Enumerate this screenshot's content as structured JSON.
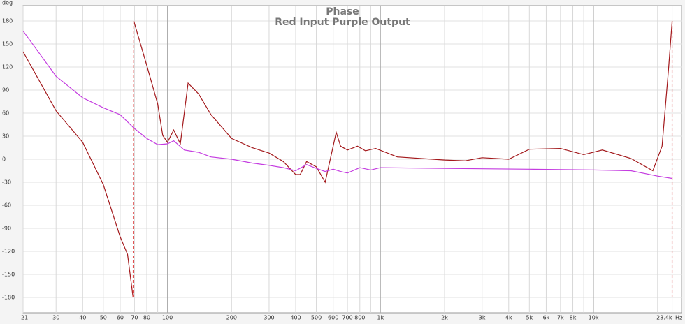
{
  "chart_data": {
    "type": "line",
    "title": "Phase",
    "subtitle": "Red Input Purple Output",
    "y_label": "deg",
    "x_label": "Hz",
    "log_x": true,
    "grid": true,
    "xlim": [
      21,
      25900
    ],
    "ylim": [
      -200,
      200
    ],
    "xticks": [
      21,
      30,
      40,
      50,
      60,
      70,
      80,
      100,
      200,
      300,
      400,
      500,
      600,
      700,
      800,
      {
        "value": 1000,
        "label": "1k"
      },
      {
        "value": 2000,
        "label": "2k"
      },
      {
        "value": 3000,
        "label": "3k"
      },
      {
        "value": 4000,
        "label": "4k"
      },
      {
        "value": 5000,
        "label": "5k"
      },
      {
        "value": 6000,
        "label": "6k"
      },
      {
        "value": 7000,
        "label": "7k"
      },
      {
        "value": 8000,
        "label": "8k"
      },
      {
        "value": 10000,
        "label": "10k"
      },
      {
        "value": 23400,
        "label": "23.4k"
      }
    ],
    "x_minor_gridlines": [
      90,
      900,
      9000,
      20000
    ],
    "yticks": [
      -180,
      -150,
      -120,
      -90,
      -60,
      -30,
      0,
      30,
      60,
      90,
      120,
      150,
      180
    ],
    "series": [
      {
        "name": "Input",
        "color": "#a3191c",
        "x": [
          21,
          30,
          40,
          50,
          60,
          65,
          69,
          null,
          69.5,
          80,
          90,
          95,
          100,
          107,
          115,
          125,
          140,
          160,
          200,
          250,
          300,
          350,
          400,
          420,
          450,
          500,
          550,
          620,
          650,
          700,
          780,
          850,
          950,
          1200,
          2000,
          2500,
          3000,
          4000,
          5000,
          7000,
          9000,
          11000,
          15000,
          19000,
          21000,
          22500,
          23400,
          null,
          23400
        ],
        "values": [
          140,
          63,
          22,
          -33,
          -101,
          -124,
          -180,
          null,
          180,
          122,
          72,
          31,
          22,
          38,
          20,
          99,
          85,
          58,
          27,
          15,
          8,
          -3,
          -20,
          -20,
          -3,
          -10,
          -30,
          35,
          17,
          12,
          17,
          11,
          14,
          3,
          -1,
          -2,
          2,
          0,
          13,
          14,
          6,
          12,
          1,
          -15,
          17,
          117,
          180,
          null,
          -180
        ]
      },
      {
        "name": "Output",
        "color": "#c43ce0",
        "x": [
          21,
          30,
          40,
          50,
          60,
          70,
          80,
          90,
          100,
          107,
          120,
          140,
          160,
          200,
          250,
          300,
          350,
          400,
          450,
          500,
          550,
          600,
          650,
          700,
          800,
          900,
          1000,
          2000,
          5000,
          10000,
          15000,
          20000,
          23400
        ],
        "values": [
          167,
          108,
          80,
          67,
          58,
          40,
          27,
          19,
          20,
          24,
          12,
          9,
          3,
          0,
          -5,
          -8,
          -11,
          -15,
          -7,
          -12,
          -16,
          -13,
          -16,
          -18,
          -11,
          -14,
          -11,
          -12,
          -13,
          -14,
          -15,
          -22,
          -25
        ]
      }
    ]
  }
}
